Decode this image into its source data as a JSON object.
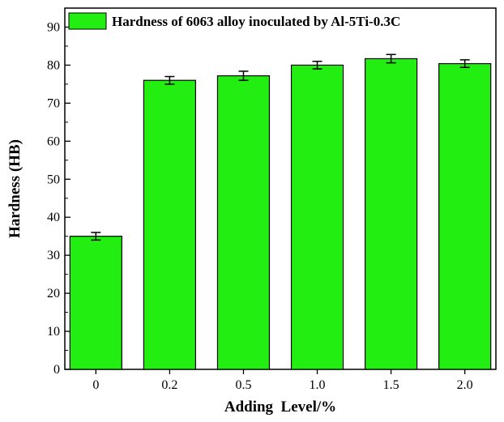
{
  "chart_data": {
    "type": "bar",
    "categories": [
      "0",
      "0.2",
      "0.5",
      "1.0",
      "1.5",
      "2.0"
    ],
    "series": [
      {
        "name": "Hardness of 6063 alloy inoculated by Al-5Ti-0.3C",
        "values": [
          35.0,
          76.0,
          77.2,
          80.0,
          81.7,
          80.4
        ],
        "errors": [
          1.0,
          1.0,
          1.2,
          1.0,
          1.1,
          1.0
        ],
        "color": "#22ee11"
      }
    ],
    "title": "",
    "xlabel": "Adding  Level/%",
    "ylabel": "Hardness (HB)",
    "ylim": [
      0,
      95
    ],
    "yticks": [
      0,
      10,
      20,
      30,
      40,
      50,
      60,
      70,
      80,
      90
    ],
    "legend_position": "top-left",
    "grid": false
  }
}
